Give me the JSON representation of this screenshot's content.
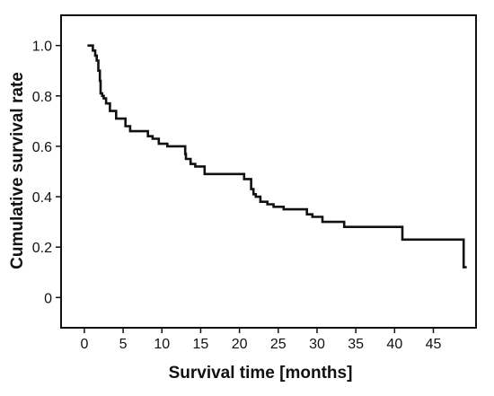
{
  "chart_data": {
    "type": "line",
    "subtype": "step",
    "title": "",
    "xlabel": "Survival time [months]",
    "ylabel": "Cumulative survival rate",
    "xlim": [
      -3,
      50.5
    ],
    "ylim": [
      -0.12,
      1.12
    ],
    "x_ticks": [
      0,
      5,
      10,
      15,
      20,
      25,
      30,
      35,
      40,
      45
    ],
    "x_tick_labels": [
      "0",
      "5",
      "10",
      "15",
      "20",
      "25",
      "30",
      "35",
      "40",
      "45"
    ],
    "y_ticks": [
      0,
      0.2,
      0.4,
      0.6,
      0.8,
      1.0
    ],
    "y_tick_labels": [
      "0",
      "0.2",
      "0.4",
      "0.6",
      "0.8",
      "1.0"
    ],
    "grid": false,
    "legend": "none",
    "line_color": "#111111",
    "series": [
      {
        "x": [
          0.4,
          1.1,
          1.4,
          1.6,
          1.8,
          2.0,
          2.1,
          2.3,
          2.5,
          2.8,
          3.3,
          3.6,
          4.1,
          5.3,
          5.9,
          7.0,
          8.2,
          8.8,
          9.6,
          10.7,
          11.6,
          13.0,
          13.1,
          13.7,
          14.3,
          15.5,
          20.6,
          21.5,
          21.8,
          22.1,
          22.7,
          23.6,
          24.4,
          25.7,
          28.7,
          29.4,
          30.7,
          33.5,
          41.0,
          48.9,
          49.3
        ],
        "y": [
          1.0,
          0.98,
          0.96,
          0.94,
          0.9,
          0.86,
          0.81,
          0.8,
          0.79,
          0.77,
          0.74,
          0.74,
          0.71,
          0.68,
          0.66,
          0.66,
          0.64,
          0.63,
          0.61,
          0.6,
          0.6,
          0.57,
          0.55,
          0.53,
          0.52,
          0.49,
          0.47,
          0.43,
          0.41,
          0.4,
          0.38,
          0.37,
          0.36,
          0.35,
          0.33,
          0.32,
          0.3,
          0.28,
          0.23,
          0.12,
          0.12
        ]
      }
    ]
  }
}
